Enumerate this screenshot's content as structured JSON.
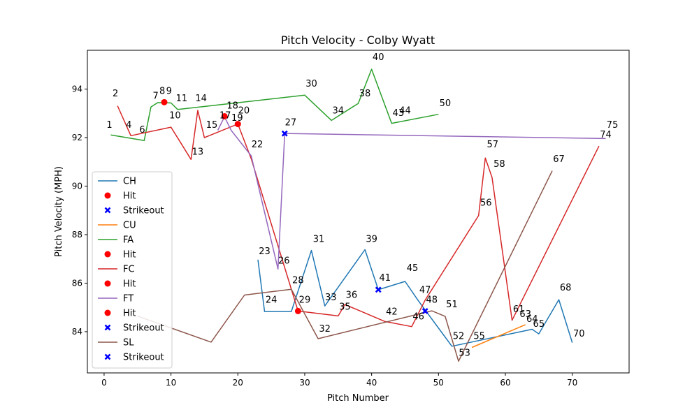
{
  "chart_data": {
    "type": "line",
    "title": "Pitch Velocity - Colby Wyatt",
    "xlabel": "Pitch Number",
    "ylabel": "Pitch Velocity (MPH)",
    "xlim": [
      -2.5,
      78.5
    ],
    "ylim": [
      82.3,
      95.6
    ],
    "xticks": [
      0,
      10,
      20,
      30,
      40,
      50,
      60,
      70
    ],
    "yticks": [
      84,
      86,
      88,
      90,
      92,
      94
    ],
    "grid": false,
    "legend_position": "lower-left",
    "series": [
      {
        "name": "CH",
        "color": "#1f77b4",
        "x": [
          23,
          24,
          28,
          31,
          33,
          39,
          41,
          45,
          47,
          52,
          64,
          65,
          68,
          70
        ],
        "y": [
          86.97,
          84.83,
          84.83,
          87.35,
          85.06,
          87.38,
          85.73,
          86.07,
          85.27,
          83.4,
          84.1,
          83.91,
          85.32,
          83.55
        ]
      },
      {
        "name": "CU",
        "color": "#ff7f0e",
        "x": [
          55,
          63
        ],
        "y": [
          83.35,
          84.29
        ]
      },
      {
        "name": "FA",
        "color": "#2ca02c",
        "x": [
          1,
          6,
          7,
          8,
          10,
          11,
          30,
          34,
          38,
          40,
          43,
          50
        ],
        "y": [
          92.11,
          91.88,
          93.26,
          93.44,
          93.43,
          93.16,
          93.75,
          92.71,
          93.41,
          94.82,
          92.59,
          92.96
        ]
      },
      {
        "name": "FC",
        "color": "#d62728",
        "x": [
          2,
          4,
          10,
          13,
          14,
          15,
          20,
          22,
          29,
          35,
          36,
          42,
          46,
          48,
          56,
          57,
          58,
          61,
          74
        ],
        "y": [
          93.31,
          92.08,
          92.43,
          91.1,
          93.12,
          92.0,
          92.56,
          91.13,
          84.85,
          84.65,
          85.12,
          84.42,
          84.21,
          85.3,
          88.79,
          91.16,
          90.36,
          84.47,
          91.65
        ]
      },
      {
        "name": "FT",
        "color": "#9467bd",
        "x": [
          17,
          18,
          19,
          22,
          26,
          27,
          75
        ],
        "y": [
          92.3,
          92.86,
          92.3,
          91.25,
          86.58,
          92.17,
          91.96
        ]
      },
      {
        "name": "SL",
        "color": "#8c564b",
        "x": [
          5,
          16,
          21,
          28,
          32,
          49,
          51,
          53,
          67
        ],
        "y": [
          84.64,
          83.57,
          85.51,
          85.75,
          83.71,
          84.86,
          84.63,
          82.78,
          90.63
        ]
      }
    ],
    "markers": [
      {
        "series": "FA",
        "type": "Hit",
        "x": 9,
        "y": 93.46
      },
      {
        "series": "FC",
        "type": "Hit",
        "x": 18,
        "y": 92.88
      },
      {
        "series": "FC",
        "type": "Hit",
        "x": 20,
        "y": 92.56
      },
      {
        "series": "FC",
        "type": "Hit",
        "x": 29,
        "y": 84.85
      },
      {
        "series": "FT",
        "type": "Strikeout",
        "x": 27,
        "y": 92.17
      },
      {
        "series": "CH",
        "type": "Strikeout",
        "x": 41,
        "y": 85.73
      },
      {
        "series": "SL",
        "type": "Strikeout",
        "x": 48,
        "y": 84.85
      }
    ],
    "marker_styles": {
      "Hit": {
        "color": "#ff0000"
      },
      "Strikeout": {
        "color": "#0000ff"
      }
    },
    "point_labels": [
      {
        "text": "1",
        "x": 0.8,
        "y": 92.5
      },
      {
        "text": "2",
        "x": 1.7,
        "y": 93.8
      },
      {
        "text": "4",
        "x": 3.7,
        "y": 92.5
      },
      {
        "text": "6",
        "x": 5.7,
        "y": 92.3
      },
      {
        "text": "7",
        "x": 7.7,
        "y": 93.7
      },
      {
        "text": "8",
        "x": 8.7,
        "y": 93.9
      },
      {
        "text": "9",
        "x": 9.7,
        "y": 93.9
      },
      {
        "text": "10",
        "x": 10.6,
        "y": 92.9
      },
      {
        "text": "11",
        "x": 11.6,
        "y": 93.6
      },
      {
        "text": "13",
        "x": 14.0,
        "y": 91.4
      },
      {
        "text": "14",
        "x": 14.5,
        "y": 93.6
      },
      {
        "text": "15",
        "x": 16.1,
        "y": 92.5
      },
      {
        "text": "17",
        "x": 18.1,
        "y": 92.9
      },
      {
        "text": "18",
        "x": 19.2,
        "y": 93.3
      },
      {
        "text": "19",
        "x": 19.9,
        "y": 92.8
      },
      {
        "text": "20",
        "x": 20.9,
        "y": 93.1
      },
      {
        "text": "22",
        "x": 22.9,
        "y": 91.7
      },
      {
        "text": "23",
        "x": 24.0,
        "y": 87.3
      },
      {
        "text": "24",
        "x": 25.0,
        "y": 85.3
      },
      {
        "text": "26",
        "x": 26.9,
        "y": 86.9
      },
      {
        "text": "27",
        "x": 27.9,
        "y": 92.6
      },
      {
        "text": "28",
        "x": 29.0,
        "y": 86.1
      },
      {
        "text": "29",
        "x": 30.0,
        "y": 85.3
      },
      {
        "text": "30",
        "x": 31.0,
        "y": 94.2
      },
      {
        "text": "31",
        "x": 32.1,
        "y": 87.8
      },
      {
        "text": "32",
        "x": 33.0,
        "y": 84.1
      },
      {
        "text": "33",
        "x": 33.9,
        "y": 85.4
      },
      {
        "text": "34",
        "x": 35.0,
        "y": 93.1
      },
      {
        "text": "35",
        "x": 36.0,
        "y": 85.0
      },
      {
        "text": "36",
        "x": 37.0,
        "y": 85.5
      },
      {
        "text": "38",
        "x": 39.0,
        "y": 93.8
      },
      {
        "text": "39",
        "x": 40.0,
        "y": 87.8
      },
      {
        "text": "40",
        "x": 41.0,
        "y": 95.3
      },
      {
        "text": "41",
        "x": 42.0,
        "y": 86.2
      },
      {
        "text": "42",
        "x": 43.0,
        "y": 84.8
      },
      {
        "text": "43",
        "x": 44.0,
        "y": 93.0
      },
      {
        "text": "44",
        "x": 45.0,
        "y": 93.1
      },
      {
        "text": "45",
        "x": 46.1,
        "y": 86.6
      },
      {
        "text": "46",
        "x": 47.0,
        "y": 84.6
      },
      {
        "text": "47",
        "x": 48.0,
        "y": 85.7
      },
      {
        "text": "48",
        "x": 49.0,
        "y": 85.3
      },
      {
        "text": "50",
        "x": 51.0,
        "y": 93.4
      },
      {
        "text": "51",
        "x": 52.0,
        "y": 85.1
      },
      {
        "text": "52",
        "x": 53.0,
        "y": 83.8
      },
      {
        "text": "53",
        "x": 53.9,
        "y": 83.1
      },
      {
        "text": "55",
        "x": 56.1,
        "y": 83.8
      },
      {
        "text": "56",
        "x": 57.1,
        "y": 89.3
      },
      {
        "text": "57",
        "x": 58.1,
        "y": 91.7
      },
      {
        "text": "58",
        "x": 59.1,
        "y": 90.9
      },
      {
        "text": "61",
        "x": 62.0,
        "y": 84.9
      },
      {
        "text": "63",
        "x": 63.0,
        "y": 84.7
      },
      {
        "text": "64",
        "x": 64.0,
        "y": 84.5
      },
      {
        "text": "65",
        "x": 65.0,
        "y": 84.3
      },
      {
        "text": "67",
        "x": 68.0,
        "y": 91.1
      },
      {
        "text": "68",
        "x": 69.0,
        "y": 85.8
      },
      {
        "text": "70",
        "x": 71.0,
        "y": 83.9
      },
      {
        "text": "74",
        "x": 75.0,
        "y": 92.1
      },
      {
        "text": "75",
        "x": 76.0,
        "y": 92.5
      }
    ],
    "legend": [
      {
        "label": "CH",
        "kind": "line",
        "color": "#1f77b4"
      },
      {
        "label": "Hit",
        "kind": "dot",
        "color": "#ff0000"
      },
      {
        "label": "Strikeout",
        "kind": "x",
        "color": "#0000ff"
      },
      {
        "label": "CU",
        "kind": "line",
        "color": "#ff7f0e"
      },
      {
        "label": "FA",
        "kind": "line",
        "color": "#2ca02c"
      },
      {
        "label": "Hit",
        "kind": "dot",
        "color": "#ff0000"
      },
      {
        "label": "FC",
        "kind": "line",
        "color": "#d62728"
      },
      {
        "label": "Hit",
        "kind": "dot",
        "color": "#ff0000"
      },
      {
        "label": "FT",
        "kind": "line",
        "color": "#9467bd"
      },
      {
        "label": "Hit",
        "kind": "dot",
        "color": "#ff0000"
      },
      {
        "label": "Strikeout",
        "kind": "x",
        "color": "#0000ff"
      },
      {
        "label": "SL",
        "kind": "line",
        "color": "#8c564b"
      },
      {
        "label": "Strikeout",
        "kind": "x",
        "color": "#0000ff"
      }
    ]
  }
}
